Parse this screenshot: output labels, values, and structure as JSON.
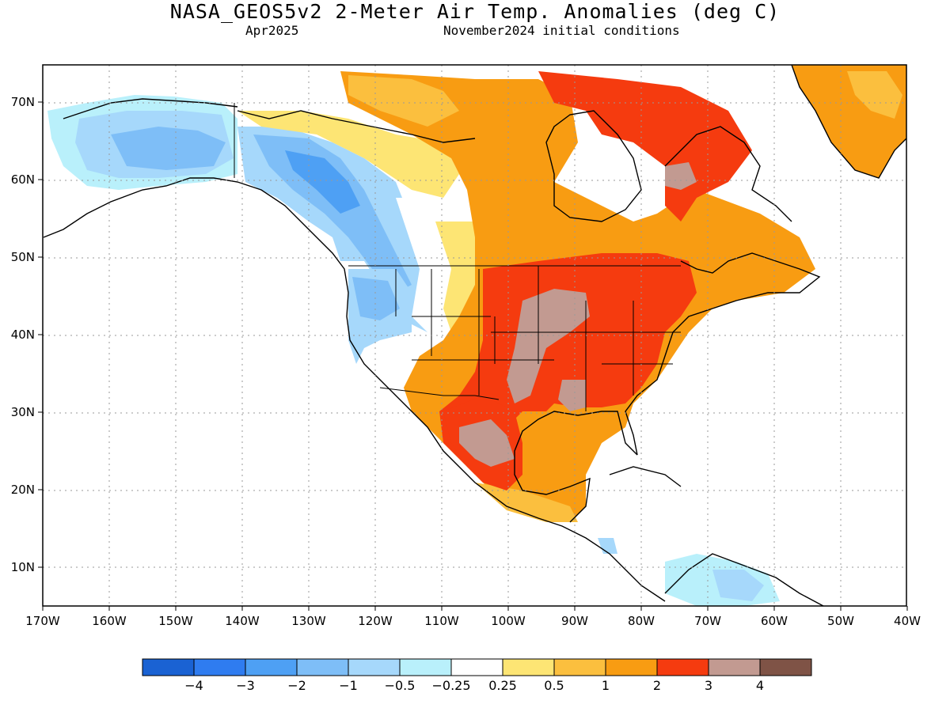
{
  "header": {
    "title": "NASA_GEOS5v2 2-Meter Air Temp. Anomalies (deg C)",
    "valid_month": "Apr2025",
    "init": "November2024 initial conditions"
  },
  "axes": {
    "lon_labels": [
      "170W",
      "160W",
      "150W",
      "140W",
      "130W",
      "120W",
      "110W",
      "100W",
      "90W",
      "80W",
      "70W",
      "60W",
      "50W",
      "40W"
    ],
    "lat_labels": [
      "10N",
      "20N",
      "30N",
      "40N",
      "50N",
      "60N",
      "70N"
    ]
  },
  "colorbar": {
    "colors": [
      "#1a62d3",
      "#2f7cf0",
      "#4ea0f4",
      "#7ebef7",
      "#a6d8fb",
      "#b9f0fb",
      "#ffffff",
      "#fde574",
      "#fbbf3e",
      "#f89c12",
      "#f53b0f",
      "#c29a91",
      "#7f5346"
    ],
    "labels": [
      "−4",
      "−3",
      "−2",
      "−1",
      "−0.5",
      "−0.25",
      "0.25",
      "0.5",
      "1",
      "2",
      "3",
      "4"
    ]
  },
  "map": {
    "land_outline_color": "#000000",
    "grid_color": "#999999"
  }
}
